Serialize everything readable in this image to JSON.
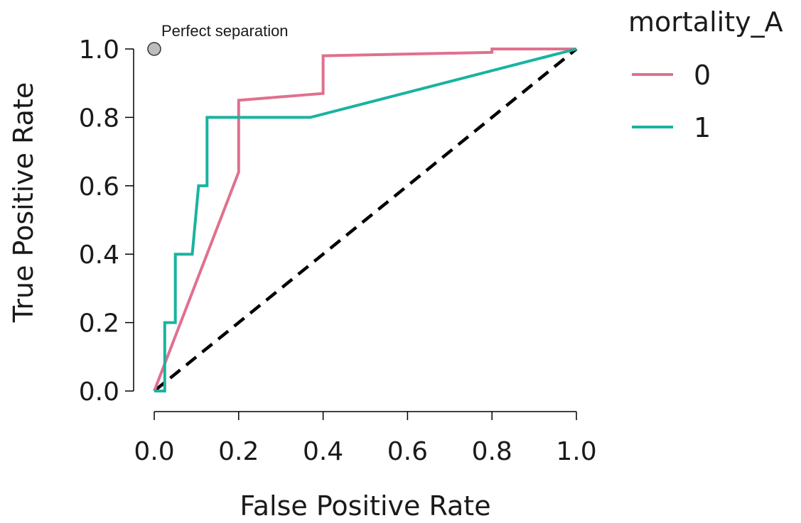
{
  "chart_data": {
    "type": "line",
    "xlabel": "False Positive Rate",
    "ylabel": "True Positive Rate",
    "xlim": [
      0,
      1
    ],
    "ylim": [
      0,
      1
    ],
    "x_ticks": [
      "0.0",
      "0.2",
      "0.4",
      "0.6",
      "0.8",
      "1.0"
    ],
    "y_ticks": [
      "0.0",
      "0.2",
      "0.4",
      "0.6",
      "0.8",
      "1.0"
    ],
    "grid": false,
    "legend": {
      "title": "mortality_A",
      "placement": "right"
    },
    "series": [
      {
        "name": "0",
        "color": "#E0708E",
        "x": [
          0.0,
          0.2,
          0.2,
          0.4,
          0.4,
          0.8,
          0.8,
          1.0
        ],
        "y": [
          0.0,
          0.64,
          0.85,
          0.87,
          0.98,
          0.99,
          1.0,
          1.0
        ]
      },
      {
        "name": "1",
        "color": "#19B3A0",
        "x": [
          0.0,
          0.025,
          0.025,
          0.05,
          0.05,
          0.07,
          0.07,
          0.09,
          0.09,
          0.105,
          0.105,
          0.125,
          0.125,
          0.37,
          1.0
        ],
        "y": [
          0.0,
          0.0,
          0.2,
          0.2,
          0.4,
          0.4,
          0.4,
          0.4,
          0.4,
          0.6,
          0.6,
          0.6,
          0.8,
          0.8,
          1.0
        ]
      }
    ],
    "reference_line": {
      "style": "dashed",
      "color": "#000000",
      "x": [
        0,
        1
      ],
      "y": [
        0,
        1
      ]
    },
    "annotation": {
      "text": "Perfect separation",
      "x": 0,
      "y": 1,
      "marker_color": "#BDBDBD"
    }
  }
}
